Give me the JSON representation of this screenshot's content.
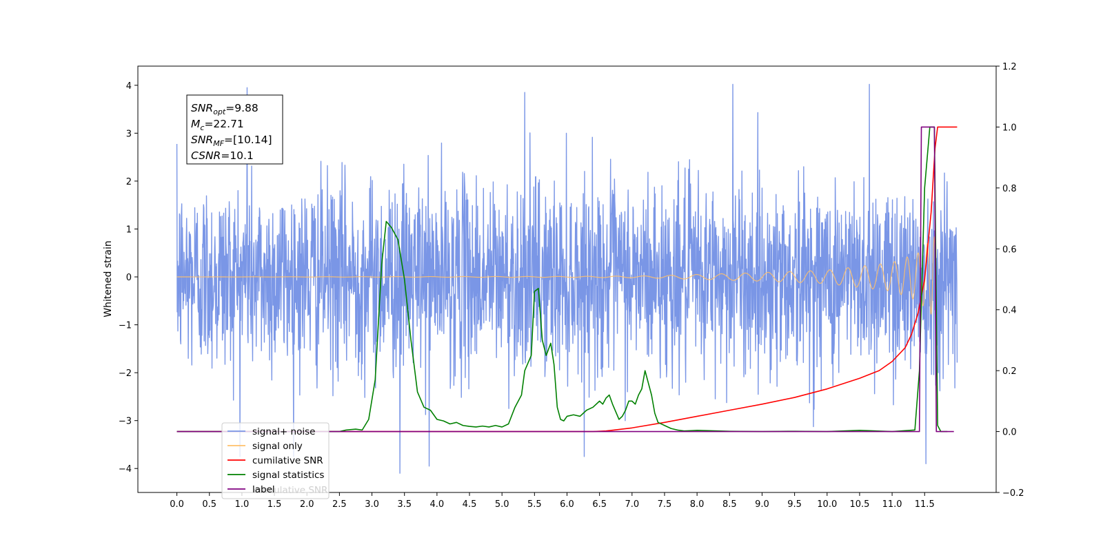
{
  "chart_data": {
    "type": "line",
    "title": "",
    "xlabel": "",
    "ylabel": "Whitened strain",
    "y2label": "",
    "xlim": [
      -0.6,
      12.6
    ],
    "ylim": [
      -4.5,
      4.4
    ],
    "y2lim": [
      -0.2,
      1.2
    ],
    "grid": false,
    "x_ticks": [
      0.0,
      0.5,
      1.0,
      1.5,
      2.0,
      2.5,
      3.0,
      3.5,
      4.0,
      4.5,
      5.0,
      5.5,
      6.0,
      6.5,
      7.0,
      7.5,
      8.0,
      8.5,
      9.0,
      9.5,
      10.0,
      10.5,
      11.0,
      11.5
    ],
    "x_tick_labels": [
      "0.0",
      "0.5",
      "1.0",
      "1.5",
      "2.0",
      "2.5",
      "3.0",
      "3.5",
      "4.0",
      "4.5",
      "5.0",
      "5.5",
      "6.0",
      "6.5",
      "7.0",
      "7.5",
      "8.0",
      "8.5",
      "9.0",
      "9.5",
      "10.0",
      "10.5",
      "11.0",
      "11.5"
    ],
    "y_ticks": [
      -4,
      -3,
      -2,
      -1,
      0,
      1,
      2,
      3,
      4
    ],
    "y_tick_labels": [
      "−4",
      "−3",
      "−2",
      "−1",
      "0",
      "1",
      "2",
      "3",
      "4"
    ],
    "y2_ticks": [
      -0.2,
      0.0,
      0.2,
      0.4,
      0.6,
      0.8,
      1.0,
      1.2
    ],
    "y2_tick_labels": [
      "−0.2",
      "0.0",
      "0.2",
      "0.4",
      "0.6",
      "0.8",
      "1.0",
      "1.2"
    ],
    "annotation": {
      "lines": [
        {
          "sym": "SNR",
          "sub": "opt",
          "val": "=9.88"
        },
        {
          "sym": "M",
          "sub": "c",
          "val": "=22.71"
        },
        {
          "sym": "SNR",
          "sub": "MF",
          "val": "=[10.14]"
        },
        {
          "sym": "CSNR",
          "sub": "",
          "val": "=10.1"
        }
      ],
      "placement": "top-left"
    },
    "legend": {
      "placement": "lower-left",
      "hidden_text": "cumulative SNR",
      "entries": [
        {
          "label": "signal+ noise",
          "color": "#7a96e6"
        },
        {
          "label": "signal only",
          "color": "#ffc06a"
        },
        {
          "label": "cumilative SNR",
          "color": "#ff0000"
        },
        {
          "label": "signal statistics",
          "color": "#008000"
        },
        {
          "label": "label",
          "color": "#800080"
        }
      ]
    },
    "series": [
      {
        "name": "signal+ noise",
        "axis": "left",
        "color": "#7a96e6",
        "kind": "noise",
        "x_range": [
          0.0,
          12.0
        ],
        "envelope": {
          "mean": 0.0,
          "sigma": 1.0,
          "max": 4.0,
          "min": -4.1
        },
        "notable_peaks": [
          [
            1.08,
            3.95
          ],
          [
            5.35,
            3.85
          ],
          [
            8.55,
            4.02
          ],
          [
            10.65,
            4.02
          ],
          [
            3.43,
            -4.1
          ],
          [
            3.88,
            -3.95
          ],
          [
            11.52,
            -3.9
          ]
        ]
      },
      {
        "name": "signal only",
        "axis": "left",
        "color": "#ffc06a",
        "kind": "chirp",
        "x_range": [
          0.0,
          11.67
        ],
        "amplitude": [
          [
            0.0,
            0.0
          ],
          [
            6.0,
            0.01
          ],
          [
            7.2,
            0.02
          ],
          [
            8.0,
            0.05
          ],
          [
            9.0,
            0.09
          ],
          [
            10.0,
            0.14
          ],
          [
            11.0,
            0.3
          ],
          [
            11.4,
            0.5
          ],
          [
            11.6,
            0.78
          ],
          [
            11.67,
            0.85
          ]
        ],
        "envelope_max": 0.85
      },
      {
        "name": "cumilative SNR",
        "axis": "right",
        "color": "#ff0000",
        "x": [
          0.0,
          6.4,
          6.6,
          7.0,
          7.5,
          8.0,
          8.5,
          9.0,
          9.5,
          10.0,
          10.5,
          10.8,
          11.0,
          11.2,
          11.3,
          11.4,
          11.5,
          11.6,
          11.66,
          11.7,
          12.0
        ],
        "values": [
          0.0,
          0.0,
          0.002,
          0.012,
          0.03,
          0.05,
          0.07,
          0.09,
          0.112,
          0.14,
          0.175,
          0.2,
          0.23,
          0.275,
          0.32,
          0.39,
          0.5,
          0.72,
          0.93,
          1.0,
          1.0
        ]
      },
      {
        "name": "signal statistics",
        "axis": "right",
        "color": "#008000",
        "x": [
          0.0,
          2.5,
          2.6,
          2.75,
          2.85,
          2.95,
          3.05,
          3.15,
          3.22,
          3.3,
          3.4,
          3.5,
          3.6,
          3.7,
          3.8,
          3.9,
          4.0,
          4.1,
          4.2,
          4.3,
          4.4,
          4.5,
          4.6,
          4.7,
          4.8,
          4.9,
          5.0,
          5.1,
          5.2,
          5.3,
          5.35,
          5.45,
          5.5,
          5.56,
          5.62,
          5.68,
          5.75,
          5.8,
          5.85,
          5.9,
          5.95,
          6.0,
          6.1,
          6.2,
          6.3,
          6.4,
          6.5,
          6.55,
          6.6,
          6.65,
          6.7,
          6.8,
          6.85,
          6.9,
          6.95,
          7.0,
          7.05,
          7.1,
          7.15,
          7.2,
          7.25,
          7.3,
          7.35,
          7.4,
          7.5,
          7.6,
          7.7,
          7.8,
          7.9,
          8.0,
          8.5,
          9.0,
          9.5,
          10.0,
          10.5,
          11.0,
          11.35,
          11.42,
          11.5,
          11.58,
          11.65,
          11.7,
          11.75,
          11.85
        ],
        "values": [
          0.0,
          0.0,
          0.005,
          0.008,
          0.005,
          0.04,
          0.17,
          0.55,
          0.69,
          0.67,
          0.63,
          0.5,
          0.3,
          0.13,
          0.08,
          0.07,
          0.04,
          0.035,
          0.025,
          0.03,
          0.02,
          0.017,
          0.015,
          0.018,
          0.015,
          0.02,
          0.015,
          0.025,
          0.08,
          0.12,
          0.2,
          0.25,
          0.46,
          0.47,
          0.3,
          0.25,
          0.29,
          0.22,
          0.08,
          0.04,
          0.035,
          0.05,
          0.055,
          0.05,
          0.07,
          0.08,
          0.1,
          0.09,
          0.11,
          0.12,
          0.09,
          0.04,
          0.05,
          0.07,
          0.1,
          0.1,
          0.09,
          0.12,
          0.14,
          0.2,
          0.16,
          0.12,
          0.06,
          0.03,
          0.02,
          0.01,
          0.005,
          0.002,
          0.003,
          0.004,
          0.001,
          0.0,
          0.001,
          0.0,
          0.004,
          0.0,
          0.005,
          0.2,
          0.8,
          1.0,
          1.0,
          0.02,
          0.0,
          0.0
        ]
      },
      {
        "name": "label",
        "axis": "right",
        "color": "#800080",
        "x": [
          0.0,
          11.42,
          11.45,
          11.65,
          11.68,
          11.95
        ],
        "values": [
          0.0,
          0.0,
          1.0,
          1.0,
          0.0,
          0.0
        ]
      }
    ]
  }
}
